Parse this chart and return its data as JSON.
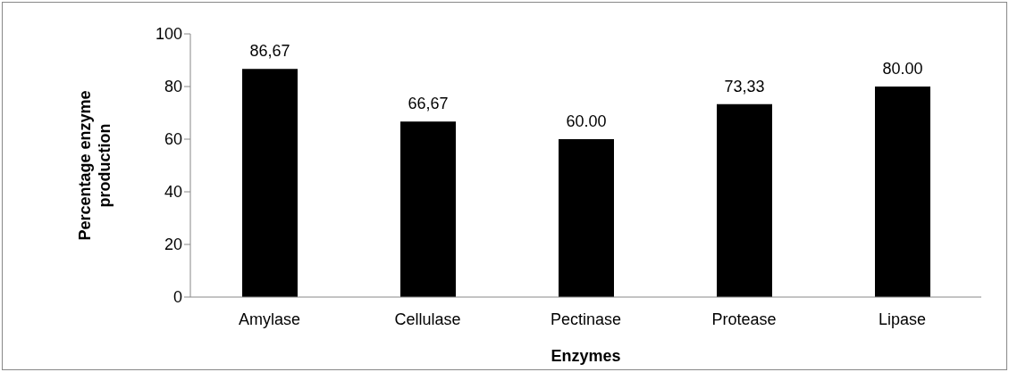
{
  "chart_data": {
    "type": "bar",
    "xlabel": "Enzymes",
    "ylabel": "Percentage enzyme production",
    "categories": [
      "Amylase",
      "Cellulase",
      "Pectinase",
      "Protease",
      "Lipase"
    ],
    "values": [
      86.67,
      66.67,
      60,
      73.33,
      80
    ],
    "value_labels": [
      "86,67",
      "66,67",
      "60.00",
      "73,33",
      "80.00"
    ],
    "color": "#000000",
    "ylim": [
      0,
      100
    ],
    "yticks": [
      0,
      20,
      40,
      60,
      80,
      100
    ],
    "grid": false,
    "legend": false
  }
}
